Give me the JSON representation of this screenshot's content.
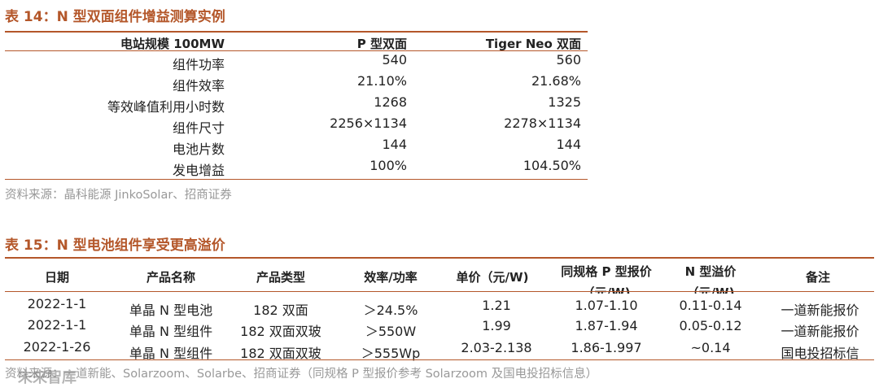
{
  "table14": {
    "title": "表 14：N 型双面组件增益测算实例",
    "headers": [
      "电站规模 100MW",
      "P 型双面",
      "Tiger Neo 双面"
    ],
    "rows": [
      [
        "组件功率",
        "540",
        "560"
      ],
      [
        "组件效率",
        "21.10%",
        "21.68%"
      ],
      [
        "等效峰值利用小时数",
        "1268",
        "1325"
      ],
      [
        "组件尺寸",
        "2256×1134",
        "2278×1134"
      ],
      [
        "电池片数",
        "144",
        "144"
      ],
      [
        "发电增益",
        "100%",
        "104.50%"
      ]
    ],
    "source": "资料来源：晶科能源 JinkoSolar、招商证券"
  },
  "table15": {
    "title": "表 15：N 型电池组件享受更高溢价",
    "headers": [
      "日期",
      "产品名称",
      "产品类型",
      "效率/功率",
      "单价（元/W)",
      "同规格 P 型报价（元/W)",
      "N 型溢价（元/W)",
      "备注"
    ],
    "rows": [
      [
        "2022-1-1",
        "单晶 N 型电池",
        "182 双面",
        "＞24.5%",
        "1.21",
        "1.07-1.10",
        "0.11-0.14",
        "一道新能报价"
      ],
      [
        "2022-1-1",
        "单晶 N 型组件",
        "182 双面双玻",
        "＞550W",
        "1.99",
        "1.87-1.94",
        "0.05-0.12",
        "一道新能报价"
      ],
      [
        "2022-1-26",
        "单晶 N 型组件",
        "182 双面双玻",
        "＞555Wp",
        "2.03-2.138",
        "1.86-1.997",
        "~0.14",
        "国电投招标信"
      ]
    ],
    "source": "资料来源：一道新能、Solarzoom、Solarbe、招商证券（同规格 P 型报价参考 Solarzoom 及国电投招标信息）"
  },
  "watermark": "未来智库",
  "colors": {
    "accent": "#b4572a",
    "source_text": "#999999"
  }
}
